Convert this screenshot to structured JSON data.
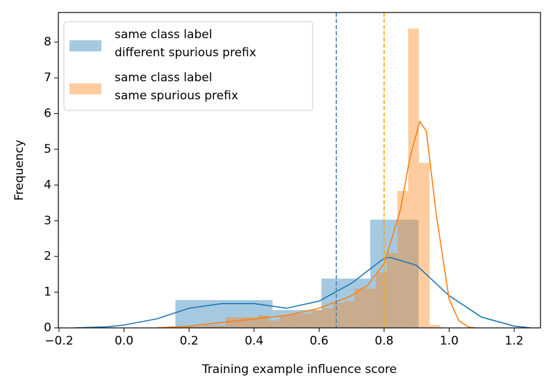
{
  "chart_data": {
    "type": "histogram",
    "xlabel": "Training example influence score",
    "ylabel": "Frequency",
    "xlim": [
      -0.202,
      1.281
    ],
    "ylim": [
      0,
      8.83
    ],
    "xticks": [
      {
        "value": -0.2,
        "label": "−0.2"
      },
      {
        "value": 0,
        "label": "0.0"
      },
      0.2,
      0.4,
      0.6,
      0.8,
      {
        "value": 1,
        "label": "1.0"
      },
      1.2
    ],
    "yticks": [
      0,
      1,
      2,
      3,
      4,
      5,
      6,
      7,
      8
    ],
    "legend": "upper left",
    "series": [
      {
        "name": "same class label\ndifferent spurious prefix",
        "color": "#1f77b4",
        "bins": [
          0.158,
          0.308,
          0.457,
          0.607,
          0.757,
          0.906
        ],
        "values": [
          0.78,
          0.78,
          0.5,
          1.38,
          3.03
        ],
        "kde": {
          "x": [
            -0.15,
            -0.05,
            0.0,
            0.1,
            0.2,
            0.3,
            0.4,
            0.5,
            0.6,
            0.7,
            0.8,
            0.82,
            0.9,
            1.0,
            1.1,
            1.2,
            1.25
          ],
          "y": [
            0.0,
            0.03,
            0.08,
            0.25,
            0.55,
            0.68,
            0.68,
            0.55,
            0.75,
            1.25,
            1.95,
            1.97,
            1.75,
            0.9,
            0.3,
            0.05,
            0.0
          ]
        }
      },
      {
        "name": "same class label\nsame spurious prefix",
        "color": "#ff7f0e",
        "bins": [
          0.181,
          0.214,
          0.247,
          0.28,
          0.313,
          0.346,
          0.379,
          0.412,
          0.445,
          0.478,
          0.511,
          0.544,
          0.577,
          0.61,
          0.643,
          0.676,
          0.709,
          0.742,
          0.775,
          0.808,
          0.841,
          0.874,
          0.907,
          0.94,
          0.973
        ],
        "values": [
          0.04,
          0.04,
          0.07,
          0.07,
          0.3,
          0.3,
          0.3,
          0.35,
          0.2,
          0.35,
          0.4,
          0.4,
          0.5,
          0.55,
          0.7,
          0.75,
          1.1,
          1.1,
          1.55,
          2.1,
          3.83,
          8.38,
          4.62,
          0.08
        ],
        "kde": {
          "x": [
            0.1,
            0.2,
            0.3,
            0.4,
            0.5,
            0.6,
            0.7,
            0.75,
            0.8,
            0.85,
            0.88,
            0.91,
            0.93,
            0.96,
            1.0,
            1.03,
            1.06,
            1.08
          ],
          "y": [
            0.0,
            0.05,
            0.15,
            0.25,
            0.35,
            0.55,
            0.9,
            1.2,
            1.8,
            3.3,
            4.8,
            5.78,
            5.5,
            3.2,
            0.8,
            0.2,
            0.02,
            0.0
          ]
        }
      }
    ],
    "lines": [
      {
        "x": 0.653,
        "color": "#4682b4"
      },
      {
        "x": 0.8,
        "color": "#ffa500"
      }
    ]
  }
}
